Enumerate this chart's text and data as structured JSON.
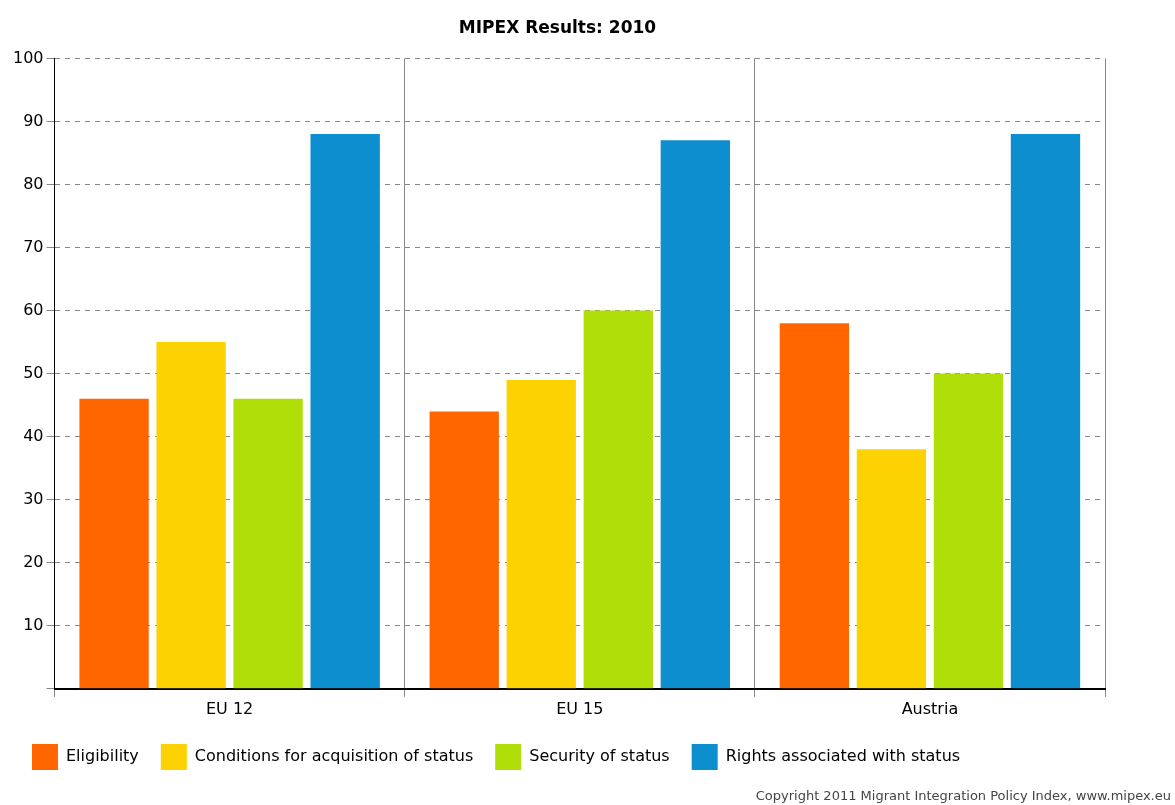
{
  "chart_data": {
    "type": "bar",
    "title": "MIPEX Results: 2010",
    "categories": [
      "EU 12",
      "EU 15",
      "Austria"
    ],
    "series": [
      {
        "name": "Eligibility",
        "color": "#ff6600",
        "values": [
          46,
          44,
          58
        ]
      },
      {
        "name": "Conditions for acquisition of status",
        "color": "#fcd202",
        "values": [
          55,
          49,
          38
        ]
      },
      {
        "name": "Security of status",
        "color": "#b0de09",
        "values": [
          46,
          60,
          50
        ]
      },
      {
        "name": "Rights associated with status",
        "color": "#0d8ecf",
        "values": [
          88,
          87,
          88
        ]
      }
    ],
    "ylim": [
      0,
      100
    ],
    "yticks": [
      {
        "value": 0,
        "label": null
      },
      10,
      20,
      30,
      40,
      50,
      60,
      70,
      80,
      90,
      100
    ],
    "grid": true,
    "legend": "bottom",
    "annotations": [
      "Copyright 2011 Migrant Integration Policy Index, www.mipex.eu"
    ]
  }
}
